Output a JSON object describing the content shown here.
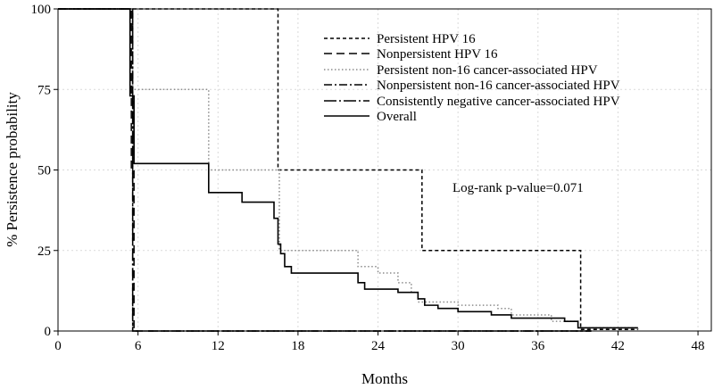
{
  "chart_data": {
    "type": "line",
    "step": true,
    "title": "",
    "xlabel": "Months",
    "ylabel": "% Persistence probability",
    "xlim": [
      0,
      49
    ],
    "ylim": [
      0,
      100
    ],
    "xticks": [
      0,
      6,
      12,
      18,
      24,
      30,
      36,
      42,
      48
    ],
    "yticks": [
      0,
      25,
      50,
      75,
      100
    ],
    "xtick_labels": [
      "0",
      "6",
      "12",
      "18",
      "24",
      "30",
      "36",
      "42",
      "48"
    ],
    "ytick_labels": [
      "0",
      "25",
      "50",
      "75",
      "100"
    ],
    "grid": true,
    "legend_position": "top-right",
    "annotation": "Log-rank p-value=0.071",
    "series": [
      {
        "name": "Persistent HPV 16",
        "dash": "short-dash",
        "x": [
          0,
          16.3,
          16.5,
          27.0,
          27.3,
          39.0,
          39.2,
          43.5
        ],
        "y": [
          100,
          100,
          50,
          50,
          25,
          25,
          0.5,
          0.5
        ]
      },
      {
        "name": "Nonpersistent HPV 16",
        "dash": "long-dash",
        "x": [
          0,
          5.2,
          5.5,
          5.7,
          40
        ],
        "y": [
          100,
          100,
          50,
          0,
          0
        ]
      },
      {
        "name": "Persistent non-16 cancer-associated HPV",
        "dash": "dotted",
        "x": [
          0,
          5.4,
          5.6,
          11.1,
          11.3,
          16.3,
          16.6,
          22.5,
          24.0,
          25.5,
          26.5,
          27.0,
          30.0,
          33.0,
          34.0,
          37.0,
          39.0,
          43.5
        ],
        "y": [
          100,
          100,
          75,
          75,
          50,
          50,
          25,
          20,
          18,
          15,
          12,
          9,
          8,
          7,
          5,
          3,
          1,
          0.5
        ]
      },
      {
        "name": "Nonpersistent non-16 cancer-associated HPV",
        "dash": "dash-dot",
        "x": [
          0,
          5.3,
          5.6,
          40
        ],
        "y": [
          100,
          100,
          0,
          0
        ]
      },
      {
        "name": "Consistently negative cancer-associated HPV",
        "dash": "long-dash-dot",
        "x": [
          0,
          5.3,
          5.6,
          40
        ],
        "y": [
          100,
          100,
          0,
          0
        ]
      },
      {
        "name": "Overall",
        "dash": "solid",
        "x": [
          0,
          5.3,
          5.4,
          5.7,
          11.1,
          11.3,
          13.8,
          16.2,
          16.5,
          16.7,
          17.0,
          17.5,
          22.5,
          23.0,
          25.5,
          27.0,
          27.5,
          28.5,
          30.0,
          32.5,
          34.0,
          38.0,
          39.0,
          43.5
        ],
        "y": [
          100,
          100,
          73,
          52,
          52,
          43,
          40,
          35,
          27,
          24,
          20,
          18,
          15,
          13,
          12,
          10,
          8,
          7,
          6,
          5,
          4,
          3,
          1,
          1
        ]
      }
    ]
  },
  "colors": {
    "axis": "#000000",
    "line": "#000000",
    "grid": "#d9d9d9",
    "dotted": "#8c8c8c"
  }
}
